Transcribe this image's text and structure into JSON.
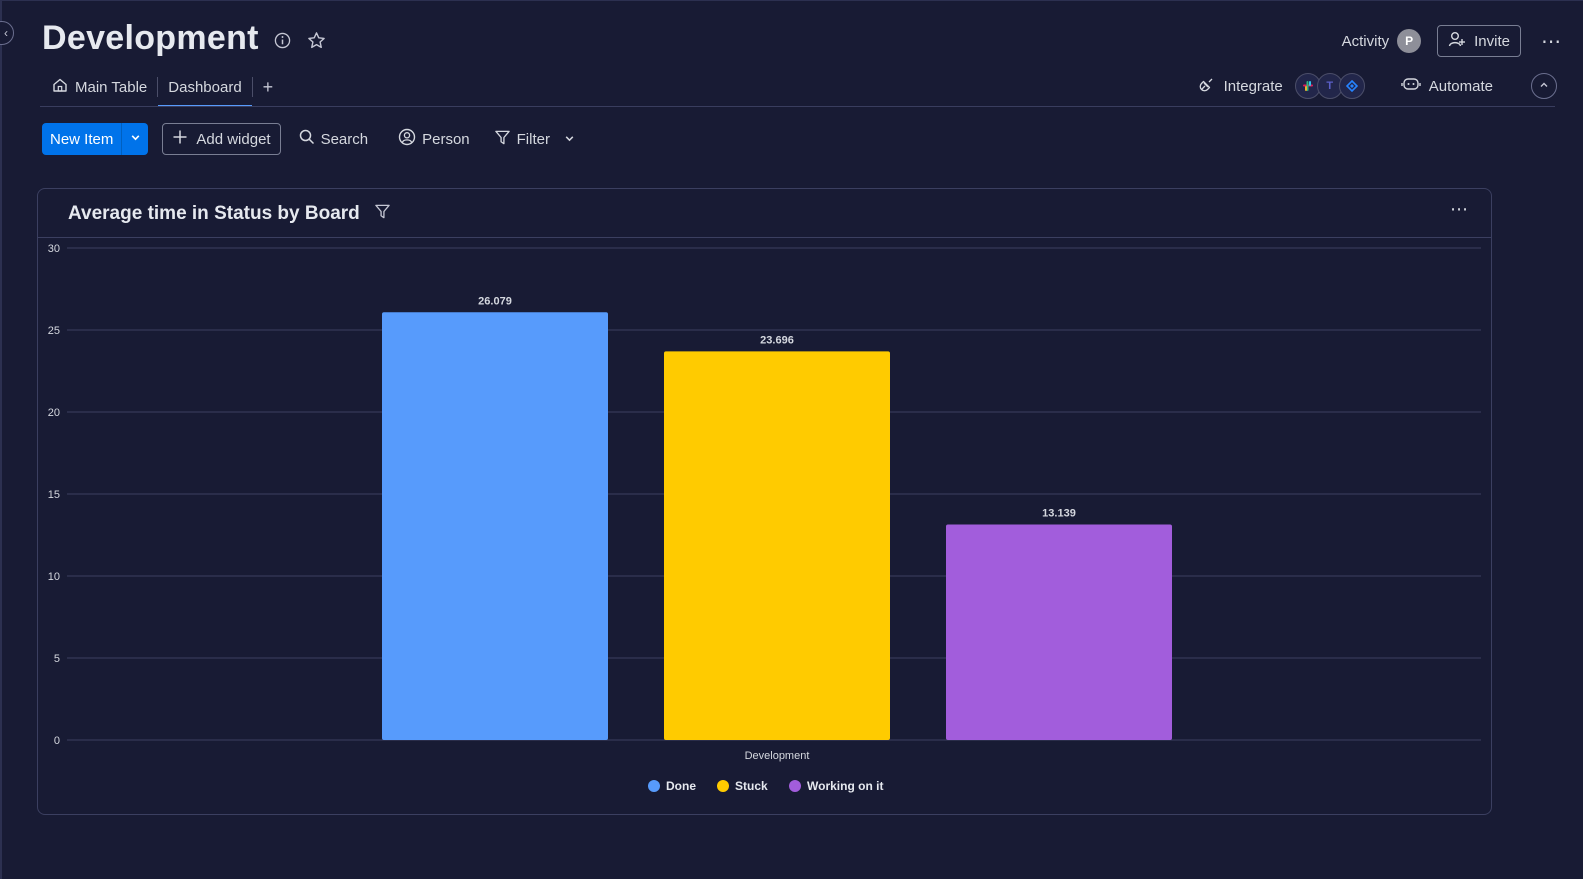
{
  "header": {
    "title": "Development",
    "activity_label": "Activity",
    "avatar_initial": "P",
    "invite_label": "Invite"
  },
  "tabs": [
    {
      "label": "Main Table",
      "icon": "home-icon"
    },
    {
      "label": "Dashboard",
      "active": true
    }
  ],
  "tools": {
    "integrate_label": "Integrate",
    "automate_label": "Automate"
  },
  "toolbar": {
    "new_item_label": "New Item",
    "add_widget_label": "Add widget",
    "search_label": "Search",
    "person_label": "Person",
    "filter_label": "Filter"
  },
  "widget": {
    "title": "Average time in Status by Board"
  },
  "colors": {
    "background": "#181b34",
    "primary": "#0073ea",
    "done": "#579bfc",
    "stuck": "#ffcb00",
    "working": "#a25ddc"
  },
  "chart_data": {
    "type": "bar",
    "title": "Average time in Status by Board",
    "categories": [
      "Development"
    ],
    "series": [
      {
        "name": "Done",
        "values": [
          26.079
        ],
        "color": "#579bfc"
      },
      {
        "name": "Stuck",
        "values": [
          23.696
        ],
        "color": "#ffcb00"
      },
      {
        "name": "Working on it",
        "values": [
          13.139
        ],
        "color": "#a25ddc"
      }
    ],
    "data_labels": [
      "26.079",
      "23.696",
      "13.139"
    ],
    "yticks": [
      0,
      5,
      10,
      15,
      20,
      25,
      30
    ],
    "ylim": [
      0,
      30
    ],
    "grid": true,
    "legend": "bottom-center"
  }
}
